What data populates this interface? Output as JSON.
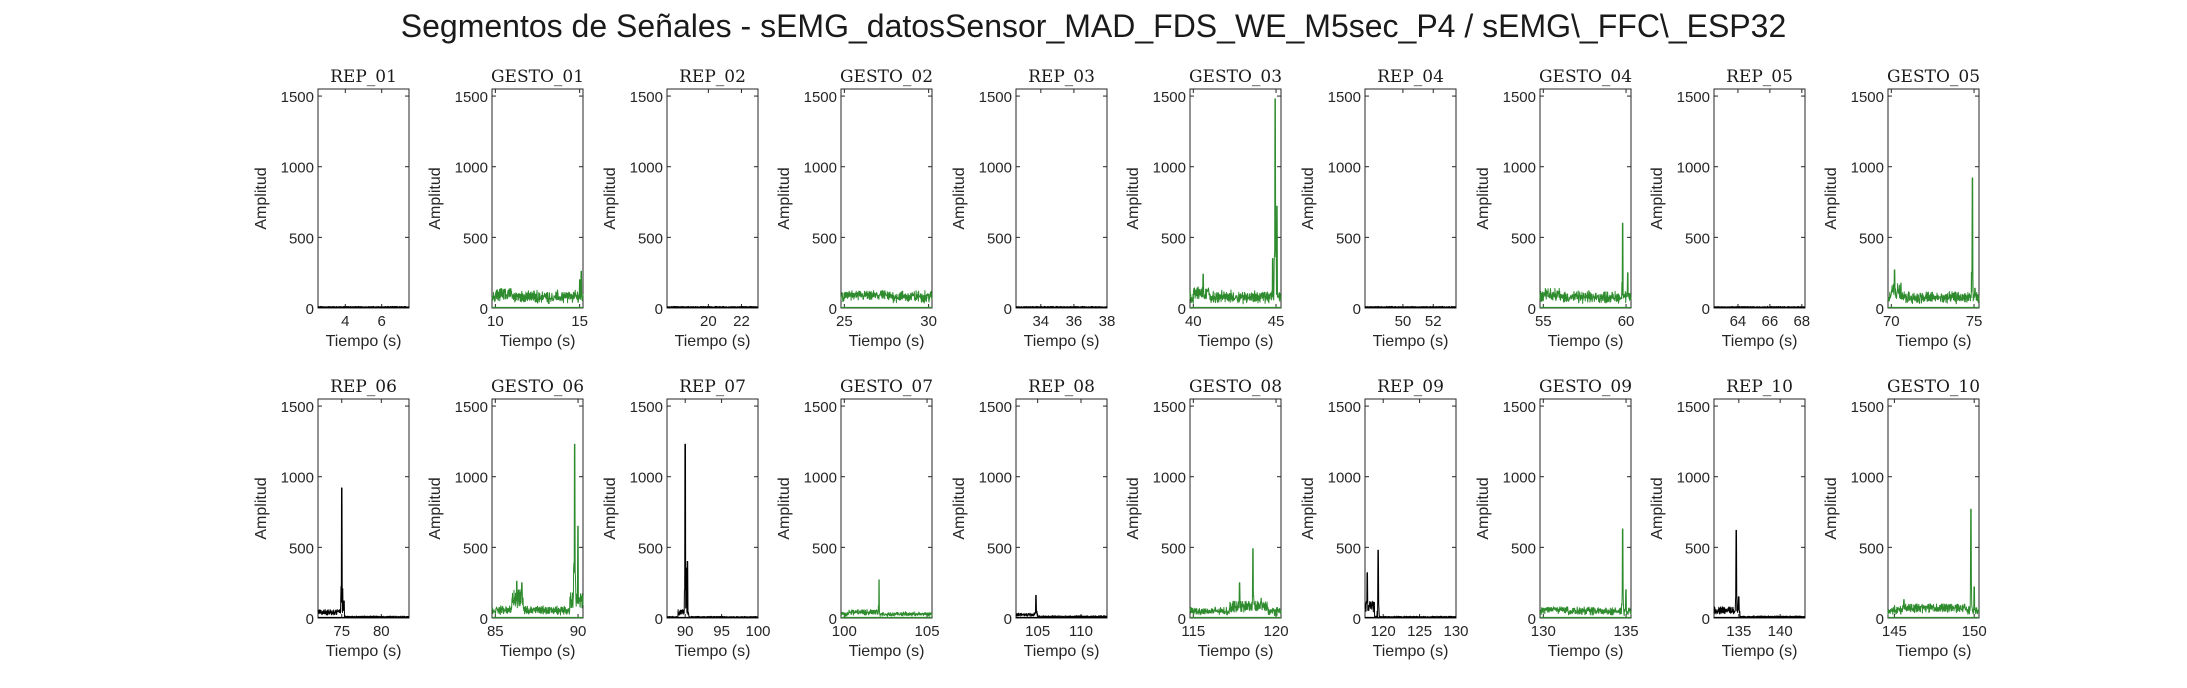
{
  "figure": {
    "title": "Segmentos de Señales - sEMG_datosSensor_MAD_FDS_WE_M5sec_P4 / sEMG\\_FFC\\_ESP32"
  },
  "colors": {
    "rep": "#000000",
    "gesto": "#2e8b2e",
    "axis": "#262626"
  },
  "chart_data": [
    {
      "type": "line",
      "title": "REP_01",
      "xlabel": "Tiempo (s)",
      "ylabel": "Amplitud",
      "xlim": [
        2.5,
        7.5
      ],
      "ylim": [
        0,
        1550
      ],
      "xticks": [
        4,
        6
      ],
      "yticks": [
        0,
        500,
        1000,
        1500
      ],
      "series": [
        {
          "color": "#000000",
          "baseline": 8,
          "noise": 4,
          "plateaus": [],
          "spikes": []
        }
      ]
    },
    {
      "type": "line",
      "title": "GESTO_01",
      "xlabel": "Tiempo (s)",
      "ylabel": "Amplitud",
      "xlim": [
        9.8,
        15.2
      ],
      "ylim": [
        0,
        1550
      ],
      "xticks": [
        10,
        15
      ],
      "yticks": [
        0,
        500,
        1000,
        1500
      ],
      "series": [
        {
          "color": "#2e8b2e",
          "baseline": 70,
          "noise": 60,
          "plateaus": [
            [
              10.0,
              11.0,
              140
            ]
          ],
          "spikes": [
            [
              15.1,
              260
            ],
            [
              15.0,
              200
            ]
          ]
        }
      ]
    },
    {
      "type": "line",
      "title": "REP_02",
      "xlabel": "Tiempo (s)",
      "ylabel": "Amplitud",
      "xlim": [
        17.5,
        23.0
      ],
      "ylim": [
        0,
        1550
      ],
      "xticks": [
        20,
        22
      ],
      "yticks": [
        0,
        500,
        1000,
        1500
      ],
      "series": [
        {
          "color": "#000000",
          "baseline": 8,
          "noise": 4,
          "plateaus": [],
          "spikes": []
        }
      ]
    },
    {
      "type": "line",
      "title": "GESTO_02",
      "xlabel": "Tiempo (s)",
      "ylabel": "Amplitud",
      "xlim": [
        24.8,
        30.2
      ],
      "ylim": [
        0,
        1550
      ],
      "xticks": [
        25,
        30
      ],
      "yticks": [
        0,
        500,
        1000,
        1500
      ],
      "series": [
        {
          "color": "#2e8b2e",
          "baseline": 80,
          "noise": 50,
          "plateaus": [
            [
              25.0,
              27.5,
              110
            ]
          ],
          "spikes": []
        }
      ]
    },
    {
      "type": "line",
      "title": "REP_03",
      "xlabel": "Tiempo (s)",
      "ylabel": "Amplitud",
      "xlim": [
        32.5,
        38.0
      ],
      "ylim": [
        0,
        1550
      ],
      "xticks": [
        34,
        36,
        38
      ],
      "yticks": [
        0,
        500,
        1000,
        1500
      ],
      "series": [
        {
          "color": "#000000",
          "baseline": 8,
          "noise": 4,
          "plateaus": [],
          "spikes": []
        }
      ]
    },
    {
      "type": "line",
      "title": "GESTO_03",
      "xlabel": "Tiempo (s)",
      "ylabel": "Amplitud",
      "xlim": [
        39.8,
        45.3
      ],
      "ylim": [
        0,
        1550
      ],
      "xticks": [
        40,
        45
      ],
      "yticks": [
        0,
        500,
        1000,
        1500
      ],
      "series": [
        {
          "color": "#2e8b2e",
          "baseline": 70,
          "noise": 60,
          "plateaus": [
            [
              40.0,
              41.0,
              150
            ]
          ],
          "spikes": [
            [
              40.6,
              240
            ],
            [
              44.8,
              350
            ],
            [
              44.95,
              1480
            ],
            [
              45.05,
              720
            ]
          ]
        }
      ]
    },
    {
      "type": "line",
      "title": "REP_04",
      "xlabel": "Tiempo (s)",
      "ylabel": "Amplitud",
      "xlim": [
        47.5,
        53.5
      ],
      "ylim": [
        0,
        1550
      ],
      "xticks": [
        50,
        52
      ],
      "yticks": [
        0,
        500,
        1000,
        1500
      ],
      "series": [
        {
          "color": "#000000",
          "baseline": 8,
          "noise": 4,
          "plateaus": [],
          "spikes": []
        }
      ]
    },
    {
      "type": "line",
      "title": "GESTO_04",
      "xlabel": "Tiempo (s)",
      "ylabel": "Amplitud",
      "xlim": [
        54.8,
        60.3
      ],
      "ylim": [
        0,
        1550
      ],
      "xticks": [
        55,
        60
      ],
      "yticks": [
        0,
        500,
        1000,
        1500
      ],
      "series": [
        {
          "color": "#2e8b2e",
          "baseline": 70,
          "noise": 55,
          "plateaus": [
            [
              55.0,
              56.0,
              140
            ]
          ],
          "spikes": [
            [
              59.8,
              600
            ],
            [
              60.1,
              250
            ]
          ]
        }
      ]
    },
    {
      "type": "line",
      "title": "REP_05",
      "xlabel": "Tiempo (s)",
      "ylabel": "Amplitud",
      "xlim": [
        62.5,
        68.2
      ],
      "ylim": [
        0,
        1550
      ],
      "xticks": [
        64,
        66,
        68
      ],
      "yticks": [
        0,
        500,
        1000,
        1500
      ],
      "series": [
        {
          "color": "#000000",
          "baseline": 8,
          "noise": 4,
          "plateaus": [],
          "spikes": []
        }
      ]
    },
    {
      "type": "line",
      "title": "GESTO_05",
      "xlabel": "Tiempo (s)",
      "ylabel": "Amplitud",
      "xlim": [
        69.8,
        75.3
      ],
      "ylim": [
        0,
        1550
      ],
      "xticks": [
        70,
        75
      ],
      "yticks": [
        0,
        500,
        1000,
        1500
      ],
      "series": [
        {
          "color": "#2e8b2e",
          "baseline": 65,
          "noise": 55,
          "plateaus": [
            [
              70.0,
              70.6,
              180
            ]
          ],
          "spikes": [
            [
              70.2,
              270
            ],
            [
              74.9,
              920
            ],
            [
              75.05,
              140
            ]
          ]
        }
      ]
    },
    {
      "type": "line",
      "title": "REP_06",
      "xlabel": "Tiempo (s)",
      "ylabel": "Amplitud",
      "xlim": [
        72.0,
        83.5
      ],
      "ylim": [
        0,
        1550
      ],
      "xticks": [
        75,
        80
      ],
      "yticks": [
        0,
        500,
        1000,
        1500
      ],
      "series": [
        {
          "color": "#000000",
          "baseline": 10,
          "noise": 5,
          "plateaus": [
            [
              72.0,
              75.3,
              60
            ]
          ],
          "spikes": [
            [
              75.0,
              920
            ],
            [
              75.3,
              120
            ]
          ]
        }
      ]
    },
    {
      "type": "line",
      "title": "GESTO_06",
      "xlabel": "Tiempo (s)",
      "ylabel": "Amplitud",
      "xlim": [
        84.8,
        90.3
      ],
      "ylim": [
        0,
        1550
      ],
      "xticks": [
        85,
        90
      ],
      "yticks": [
        0,
        500,
        1000,
        1500
      ],
      "series": [
        {
          "color": "#2e8b2e",
          "baseline": 50,
          "noise": 40,
          "plateaus": [
            [
              86.0,
              86.7,
              200
            ],
            [
              89.5,
              90.3,
              180
            ]
          ],
          "spikes": [
            [
              86.3,
              260
            ],
            [
              86.6,
              250
            ],
            [
              89.8,
              1230
            ],
            [
              90.0,
              650
            ]
          ]
        }
      ]
    },
    {
      "type": "line",
      "title": "REP_07",
      "xlabel": "Tiempo (s)",
      "ylabel": "Amplitud",
      "xlim": [
        87.5,
        100.0
      ],
      "ylim": [
        0,
        1550
      ],
      "xticks": [
        90,
        95,
        100
      ],
      "yticks": [
        0,
        500,
        1000,
        1500
      ],
      "series": [
        {
          "color": "#000000",
          "baseline": 8,
          "noise": 5,
          "plateaus": [
            [
              89.0,
              90.5,
              60
            ]
          ],
          "spikes": [
            [
              90.0,
              1230
            ],
            [
              90.3,
              400
            ]
          ]
        }
      ]
    },
    {
      "type": "line",
      "title": "GESTO_07",
      "xlabel": "Tiempo (s)",
      "ylabel": "Amplitud",
      "xlim": [
        99.8,
        105.3
      ],
      "ylim": [
        0,
        1550
      ],
      "xticks": [
        100,
        105
      ],
      "yticks": [
        0,
        500,
        1000,
        1500
      ],
      "series": [
        {
          "color": "#2e8b2e",
          "baseline": 25,
          "noise": 20,
          "plateaus": [
            [
              100.2,
              102.0,
              60
            ]
          ],
          "spikes": [
            [
              102.1,
              270
            ]
          ]
        }
      ]
    },
    {
      "type": "line",
      "title": "REP_08",
      "xlabel": "Tiempo (s)",
      "ylabel": "Amplitud",
      "xlim": [
        102.5,
        113.0
      ],
      "ylim": [
        0,
        1550
      ],
      "xticks": [
        105,
        110
      ],
      "yticks": [
        0,
        500,
        1000,
        1500
      ],
      "series": [
        {
          "color": "#000000",
          "baseline": 10,
          "noise": 8,
          "plateaus": [
            [
              102.5,
              105.0,
              35
            ]
          ],
          "spikes": [
            [
              104.8,
              160
            ]
          ]
        }
      ]
    },
    {
      "type": "line",
      "title": "GESTO_08",
      "xlabel": "Tiempo (s)",
      "ylabel": "Amplitud",
      "xlim": [
        114.8,
        120.3
      ],
      "ylim": [
        0,
        1550
      ],
      "xticks": [
        115,
        120
      ],
      "yticks": [
        0,
        500,
        1000,
        1500
      ],
      "series": [
        {
          "color": "#2e8b2e",
          "baseline": 40,
          "noise": 40,
          "plateaus": [
            [
              117.2,
              119.5,
              120
            ]
          ],
          "spikes": [
            [
              117.8,
              250
            ],
            [
              118.6,
              490
            ],
            [
              119.1,
              140
            ]
          ]
        }
      ]
    },
    {
      "type": "line",
      "title": "REP_09",
      "xlabel": "Tiempo (s)",
      "ylabel": "Amplitud",
      "xlim": [
        117.5,
        130.0
      ],
      "ylim": [
        0,
        1550
      ],
      "xticks": [
        120,
        125,
        130
      ],
      "yticks": [
        0,
        500,
        1000,
        1500
      ],
      "series": [
        {
          "color": "#000000",
          "baseline": 8,
          "noise": 6,
          "plateaus": [
            [
              117.5,
              118.8,
              120
            ]
          ],
          "spikes": [
            [
              117.8,
              320
            ],
            [
              119.3,
              480
            ]
          ]
        }
      ]
    },
    {
      "type": "line",
      "title": "GESTO_09",
      "xlabel": "Tiempo (s)",
      "ylabel": "Amplitud",
      "xlim": [
        129.8,
        135.3
      ],
      "ylim": [
        0,
        1550
      ],
      "xticks": [
        130,
        135
      ],
      "yticks": [
        0,
        500,
        1000,
        1500
      ],
      "series": [
        {
          "color": "#2e8b2e",
          "baseline": 40,
          "noise": 40,
          "plateaus": [
            [
              130.0,
              131.5,
              80
            ]
          ],
          "spikes": [
            [
              134.8,
              630
            ],
            [
              135.0,
              200
            ]
          ]
        }
      ]
    },
    {
      "type": "line",
      "title": "REP_10",
      "xlabel": "Tiempo (s)",
      "ylabel": "Amplitud",
      "xlim": [
        132.0,
        143.0
      ],
      "ylim": [
        0,
        1550
      ],
      "xticks": [
        135,
        140
      ],
      "yticks": [
        0,
        500,
        1000,
        1500
      ],
      "series": [
        {
          "color": "#000000",
          "baseline": 10,
          "noise": 6,
          "plateaus": [
            [
              132.0,
              135.0,
              80
            ]
          ],
          "spikes": [
            [
              134.7,
              620
            ],
            [
              135.0,
              150
            ]
          ]
        }
      ]
    },
    {
      "type": "line",
      "title": "GESTO_10",
      "xlabel": "Tiempo (s)",
      "ylabel": "Amplitud",
      "xlim": [
        144.6,
        150.3
      ],
      "ylim": [
        0,
        1550
      ],
      "xticks": [
        145,
        150
      ],
      "yticks": [
        0,
        500,
        1000,
        1500
      ],
      "series": [
        {
          "color": "#2e8b2e",
          "baseline": 50,
          "noise": 40,
          "plateaus": [
            [
              145.5,
              149.5,
              100
            ]
          ],
          "spikes": [
            [
              145.6,
              130
            ],
            [
              149.8,
              770
            ],
            [
              150.0,
              220
            ]
          ]
        }
      ]
    }
  ]
}
